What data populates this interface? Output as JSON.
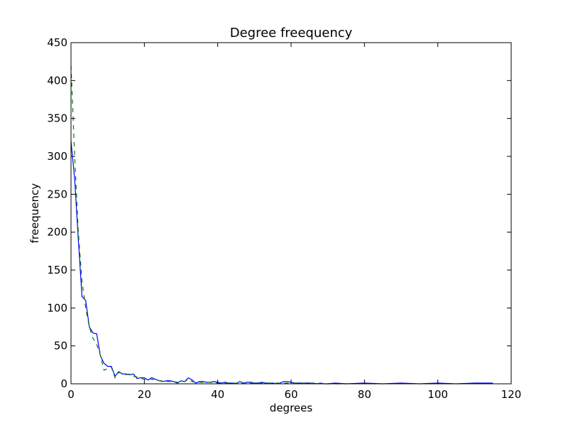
{
  "chart_data": {
    "type": "line",
    "title": "Degree freequency",
    "xlabel": "degrees",
    "ylabel": "freequency",
    "xlim": [
      0,
      120
    ],
    "ylim": [
      0,
      450
    ],
    "x_ticks": [
      0,
      20,
      40,
      60,
      80,
      100,
      120
    ],
    "y_ticks": [
      0,
      50,
      100,
      150,
      200,
      250,
      300,
      350,
      400,
      450
    ],
    "grid": false,
    "legend": "none",
    "series": [
      {
        "style": "solid",
        "color": "#0000ff",
        "points": [
          [
            0,
            320
          ],
          [
            1,
            270
          ],
          [
            2,
            190
          ],
          [
            3,
            115
          ],
          [
            4,
            110
          ],
          [
            5,
            75
          ],
          [
            6,
            67
          ],
          [
            7,
            66
          ],
          [
            8,
            37
          ],
          [
            9,
            27
          ],
          [
            10,
            23
          ],
          [
            11,
            23
          ],
          [
            12,
            10
          ],
          [
            13,
            16
          ],
          [
            14,
            13
          ],
          [
            15,
            13
          ],
          [
            16,
            12
          ],
          [
            17,
            13
          ],
          [
            18,
            7
          ],
          [
            19,
            8
          ],
          [
            20,
            8
          ],
          [
            21,
            5
          ],
          [
            22,
            8
          ],
          [
            23,
            6
          ],
          [
            24,
            4
          ],
          [
            25,
            3
          ],
          [
            26,
            4
          ],
          [
            27,
            4
          ],
          [
            28,
            3
          ],
          [
            29,
            1
          ],
          [
            30,
            4
          ],
          [
            31,
            3
          ],
          [
            32,
            8
          ],
          [
            33,
            5
          ],
          [
            34,
            1
          ],
          [
            35,
            3
          ],
          [
            36,
            3
          ],
          [
            37,
            2
          ],
          [
            38,
            2
          ],
          [
            39,
            3
          ],
          [
            40,
            2
          ],
          [
            41,
            1
          ],
          [
            42,
            2
          ],
          [
            43,
            1
          ],
          [
            44,
            1
          ],
          [
            45,
            0
          ],
          [
            46,
            3
          ],
          [
            47,
            1
          ],
          [
            48,
            2
          ],
          [
            49,
            2
          ],
          [
            50,
            1
          ],
          [
            51,
            1
          ],
          [
            52,
            2
          ],
          [
            53,
            1
          ],
          [
            54,
            1
          ],
          [
            55,
            1
          ],
          [
            56,
            0
          ],
          [
            57,
            1
          ],
          [
            58,
            3
          ],
          [
            59,
            3
          ],
          [
            60,
            2
          ],
          [
            61,
            1
          ],
          [
            62,
            1
          ],
          [
            63,
            1
          ],
          [
            64,
            1
          ],
          [
            65,
            1
          ],
          [
            66,
            1
          ],
          [
            67,
            0
          ],
          [
            68,
            1
          ],
          [
            69,
            0
          ],
          [
            70,
            0
          ],
          [
            72,
            1
          ],
          [
            75,
            0
          ],
          [
            80,
            1
          ],
          [
            85,
            0
          ],
          [
            90,
            1
          ],
          [
            95,
            0
          ],
          [
            100,
            1
          ],
          [
            105,
            0
          ],
          [
            110,
            1
          ],
          [
            115,
            1
          ]
        ]
      },
      {
        "style": "dashed",
        "color": "#007f00",
        "points": [
          [
            0,
            420
          ],
          [
            1,
            300
          ],
          [
            2,
            200
          ],
          [
            3,
            135
          ],
          [
            4,
            100
          ],
          [
            5,
            75
          ],
          [
            6,
            60
          ],
          [
            7,
            52
          ],
          [
            8,
            38
          ],
          [
            9,
            18
          ],
          [
            10,
            20
          ],
          [
            11,
            22
          ],
          [
            12,
            8
          ],
          [
            13,
            15
          ],
          [
            14,
            14
          ],
          [
            15,
            12
          ],
          [
            16,
            13
          ],
          [
            17,
            10
          ],
          [
            18,
            9
          ],
          [
            19,
            7
          ],
          [
            20,
            6
          ],
          [
            21,
            7
          ],
          [
            22,
            6
          ],
          [
            23,
            5
          ],
          [
            24,
            4
          ],
          [
            25,
            4
          ],
          [
            26,
            3
          ],
          [
            27,
            3
          ],
          [
            28,
            3
          ],
          [
            29,
            2
          ],
          [
            30,
            3
          ],
          [
            31,
            3
          ],
          [
            32,
            6
          ],
          [
            33,
            3
          ],
          [
            34,
            2
          ],
          [
            35,
            2
          ],
          [
            36,
            2
          ],
          [
            37,
            2
          ],
          [
            38,
            2
          ],
          [
            39,
            1
          ],
          [
            40,
            1
          ],
          [
            42,
            1
          ],
          [
            44,
            1
          ],
          [
            46,
            1
          ],
          [
            48,
            1
          ],
          [
            50,
            1
          ],
          [
            55,
            1
          ],
          [
            60,
            1
          ],
          [
            65,
            1
          ],
          [
            70,
            0
          ],
          [
            75,
            0
          ]
        ]
      }
    ]
  }
}
